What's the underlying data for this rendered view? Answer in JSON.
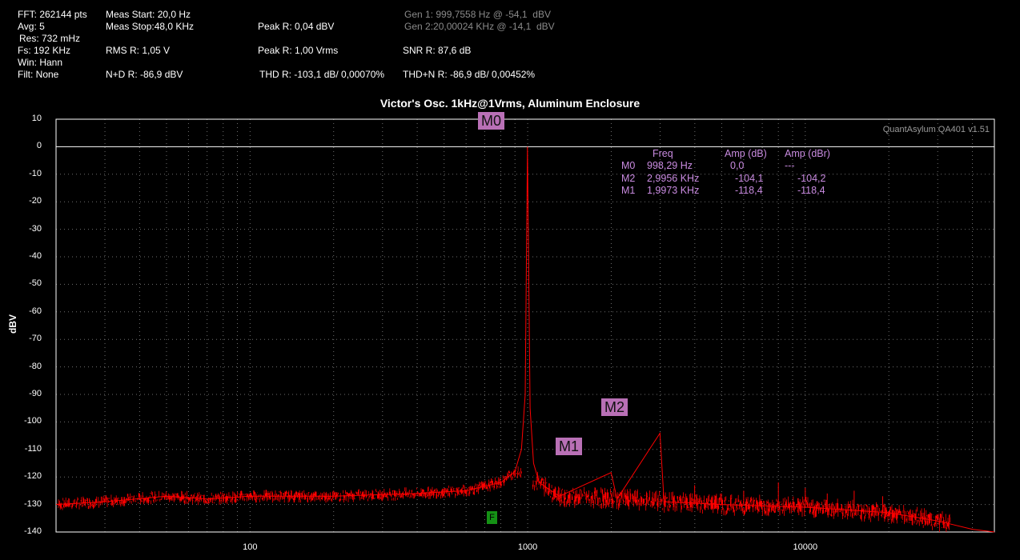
{
  "stats": {
    "fft": "FFT: 262144 pts",
    "avg": "Avg: 5",
    "res": "Res: 732 mHz",
    "fs": "Fs: 192 KHz",
    "win": "Win: Hann",
    "filt": "Filt: None",
    "meas_start": "Meas Start: 20,0 Hz",
    "meas_stop": "Meas Stop:48,0 KHz",
    "rms": "RMS R: 1,05 V",
    "nd": "N+D R: -86,9 dBV",
    "peak_dbv": "Peak R: 0,04 dBV",
    "peak_vrms": "Peak R: 1,00 Vrms",
    "thd": "THD R: -103,1 dB/ 0,00070%",
    "gen1": "Gen 1: 999,7558 Hz @ -54,1  dBV",
    "gen2": "Gen 2:20,00024 KHz @ -14,1  dBV",
    "snr": "SNR R: 87,6 dB",
    "thdn": "THD+N R: -86,9 dB/ 0,00452%"
  },
  "watermark": "QuantAsylum QA401 v1.51",
  "marker_table": {
    "headers": [
      "Freq",
      "Amp (dB)",
      "Amp (dBr)"
    ],
    "rows": [
      {
        "name": "M0",
        "freq": "998,29 Hz",
        "amp": "0,0",
        "ampr": "---"
      },
      {
        "name": "M2",
        "freq": "2,9956 KHz",
        "amp": "-104,1",
        "ampr": "-104,2"
      },
      {
        "name": "M1",
        "freq": "1,9973 KHz",
        "amp": "-118,4",
        "ampr": "-118,4"
      }
    ]
  },
  "markers": {
    "m0": "M0",
    "m1": "M1",
    "m2": "M2",
    "f": "F"
  },
  "colors": {
    "trace": "#ff0000",
    "marker": "#b970b6",
    "grid": "#6e6e6e",
    "background": "#000000"
  },
  "chart_data": {
    "type": "line",
    "title": "Victor's Osc. 1kHz@1Vrms, Aluminum Enclosure",
    "xlabel": "",
    "ylabel": "dBV",
    "xscale": "log",
    "xlim": [
      20,
      48000
    ],
    "ylim": [
      -140,
      10
    ],
    "yticks": [
      10,
      0,
      -10,
      -20,
      -30,
      -40,
      -50,
      -60,
      -70,
      -80,
      -90,
      -100,
      -110,
      -120,
      -130,
      -140
    ],
    "xticks": [
      100,
      1000,
      10000
    ],
    "reference_line_db": 0,
    "series": [
      {
        "points": [
          [
            20,
            -130
          ],
          [
            30,
            -129
          ],
          [
            50,
            -127
          ],
          [
            70,
            -128
          ],
          [
            100,
            -127
          ],
          [
            200,
            -127
          ],
          [
            400,
            -126
          ],
          [
            600,
            -125
          ],
          [
            800,
            -122
          ],
          [
            900,
            -118
          ],
          [
            950,
            -110
          ],
          [
            980,
            -90
          ],
          [
            998.29,
            0
          ],
          [
            1020,
            -95
          ],
          [
            1050,
            -115
          ],
          [
            1100,
            -122
          ],
          [
            1300,
            -127
          ],
          [
            1997.3,
            -118.4
          ],
          [
            2100,
            -128
          ],
          [
            2995.6,
            -104.1
          ],
          [
            3100,
            -129
          ],
          [
            5000,
            -130
          ],
          [
            10000,
            -131
          ],
          [
            20000,
            -133
          ],
          [
            30000,
            -136
          ],
          [
            40000,
            -139
          ],
          [
            48000,
            -140
          ]
        ]
      }
    ],
    "markers": [
      {
        "name": "M0",
        "freq_hz": 998.29,
        "amp_db": 0.0
      },
      {
        "name": "M1",
        "freq_hz": 1997.3,
        "amp_db": -118.4
      },
      {
        "name": "M2",
        "freq_hz": 2995.6,
        "amp_db": -104.1
      }
    ],
    "grid": true
  }
}
